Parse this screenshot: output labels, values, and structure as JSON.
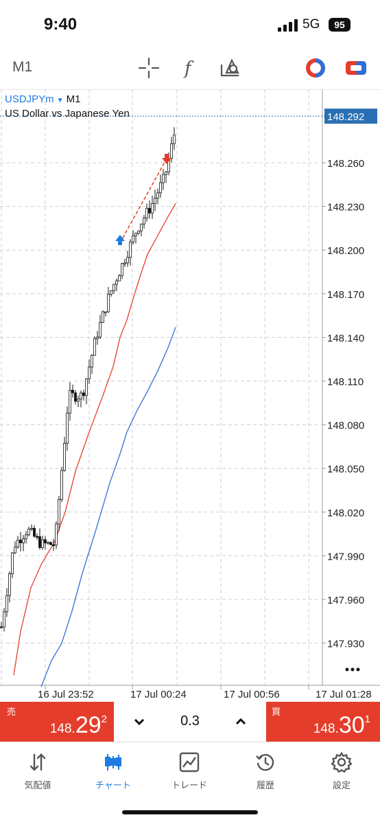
{
  "status": {
    "time": "9:40",
    "network": "5G",
    "battery": "95"
  },
  "toolbar": {
    "timeframe": "M1",
    "icons": [
      "crosshair-icon",
      "indicators-icon",
      "objects-icon",
      "one-click-trading-icon",
      "trade-icon"
    ]
  },
  "chart": {
    "symbol": "USDJPYm",
    "symbol_timeframe": "M1",
    "description": "US Dollar vs Japanese Yen",
    "price_labels": [
      "148.260",
      "148.230",
      "148.200",
      "148.170",
      "148.140",
      "148.110",
      "148.080",
      "148.050",
      "148.020",
      "147.990",
      "147.960",
      "147.930"
    ],
    "current_price": "148.292",
    "time_labels": [
      "16 Jul 23:52",
      "17 Jul 00:24",
      "17 Jul 00:56",
      "17 Jul 01:28"
    ],
    "colors": {
      "ma_fast": "#e53d2b",
      "ma_slow": "#2f6fd6",
      "bid_line": "#2a6fb3",
      "buy_arrow": "#1f7be0",
      "sell_arrow": "#e53d2b"
    }
  },
  "trade": {
    "sell_label": "売",
    "sell_price_small": "148.",
    "sell_price_big": "29",
    "sell_price_sup": "2",
    "buy_label": "買",
    "buy_price_small": "148.",
    "buy_price_big": "30",
    "buy_price_sup": "1",
    "volume": "0.3"
  },
  "tabs": [
    {
      "label": "気配値",
      "icon": "quotes-icon"
    },
    {
      "label": "チャート",
      "icon": "chart-icon"
    },
    {
      "label": "トレード",
      "icon": "trade-tab-icon"
    },
    {
      "label": "履歴",
      "icon": "history-icon"
    },
    {
      "label": "設定",
      "icon": "settings-icon"
    }
  ]
}
